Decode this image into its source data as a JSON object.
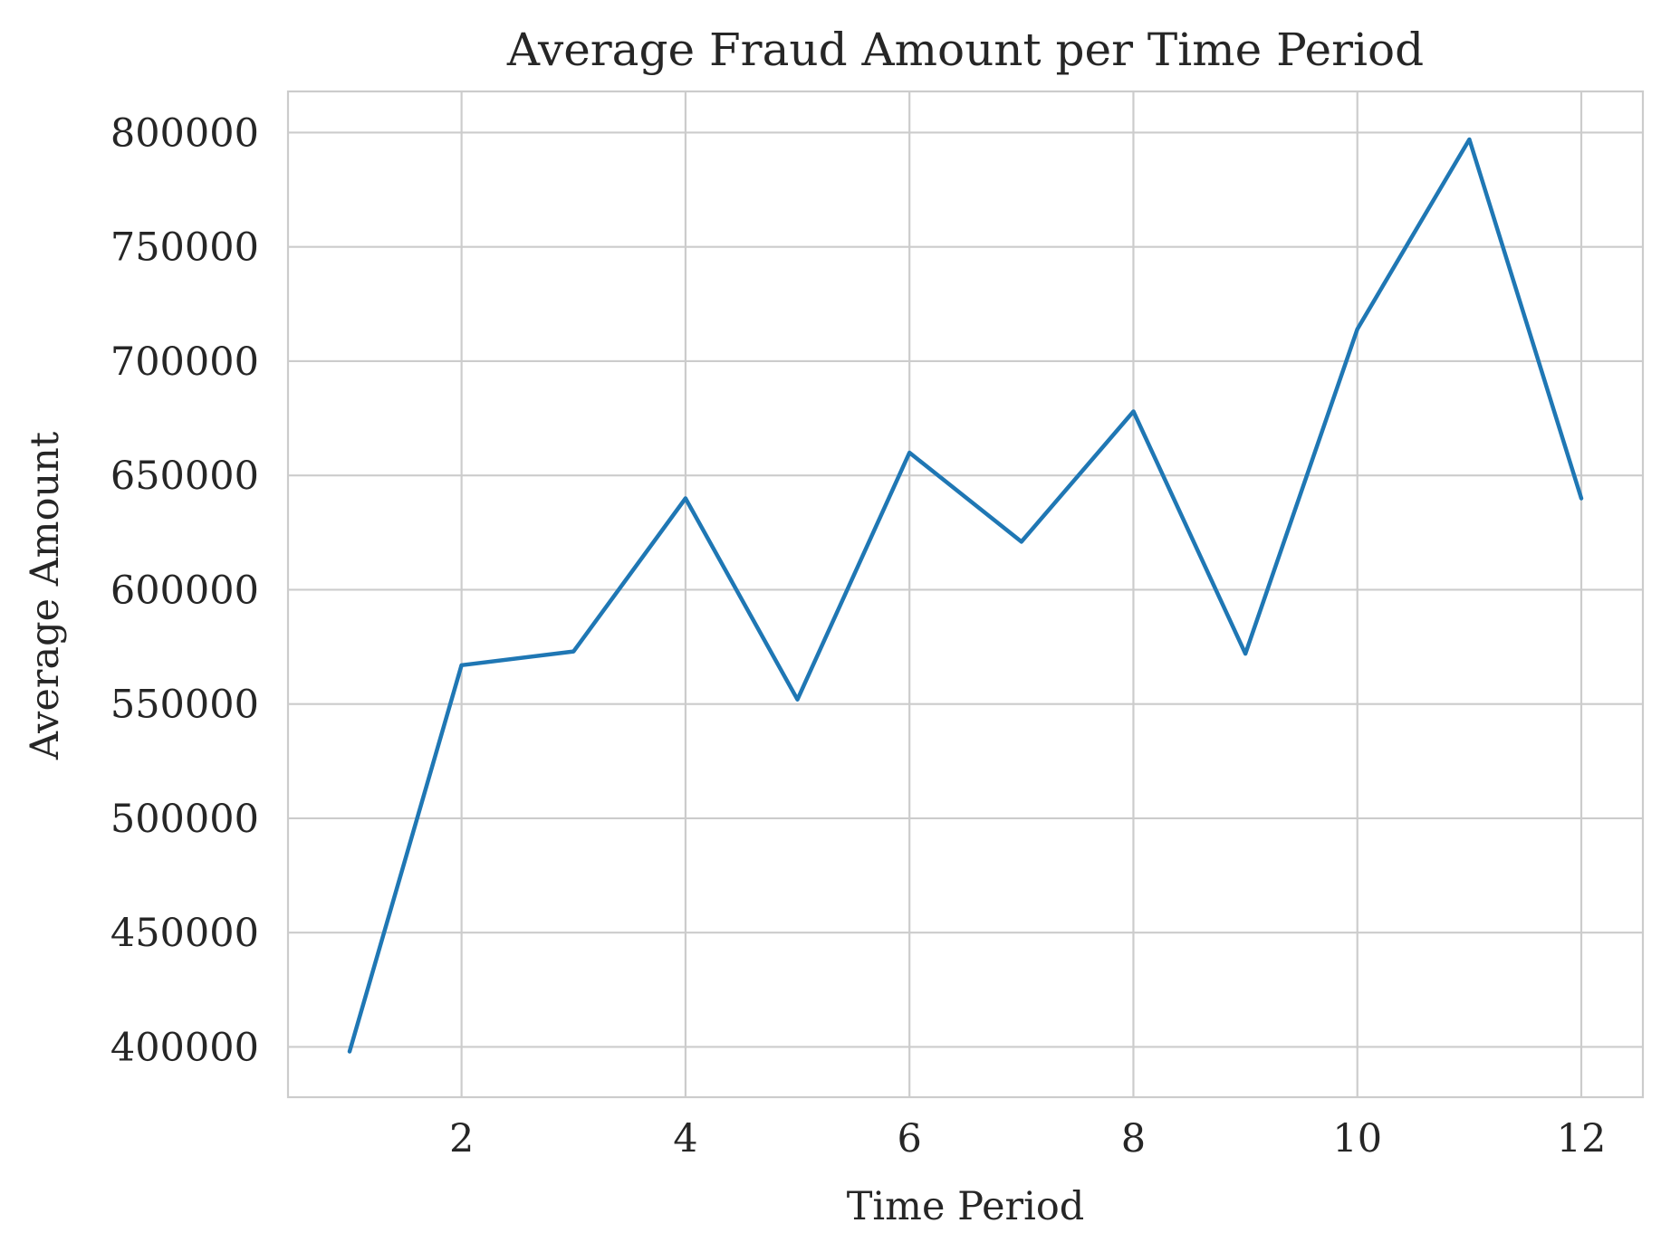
{
  "chart_data": {
    "type": "line",
    "title": "Average Fraud Amount per Time Period",
    "xlabel": "Time Period",
    "ylabel": "Average Amount",
    "xlim": [
      0.45,
      12.55
    ],
    "ylim": [
      378000,
      818000
    ],
    "xticks": [
      2,
      4,
      6,
      8,
      10,
      12
    ],
    "yticks": [
      400000,
      450000,
      500000,
      550000,
      600000,
      650000,
      700000,
      750000,
      800000
    ],
    "grid": true,
    "series": [
      {
        "color": "#1f77b4",
        "x": [
          1,
          2,
          3,
          4,
          5,
          6,
          7,
          8,
          9,
          10,
          11,
          12
        ],
        "y": [
          398000,
          567000,
          573000,
          640000,
          552000,
          660000,
          621000,
          678000,
          572000,
          714000,
          797000,
          640000
        ]
      }
    ]
  }
}
